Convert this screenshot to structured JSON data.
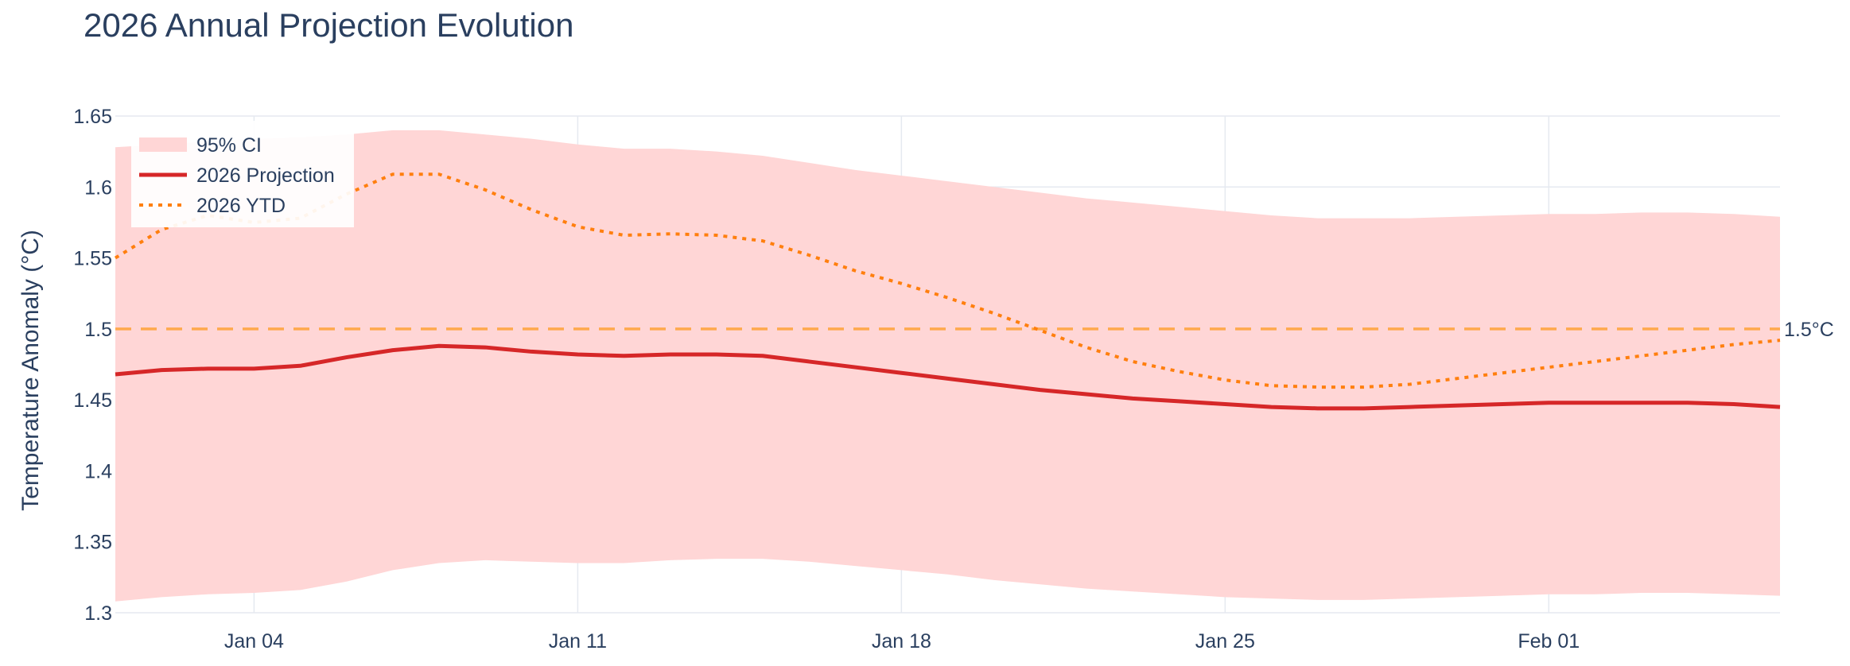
{
  "chart_data": {
    "type": "line",
    "title": "2026 Annual Projection Evolution",
    "xlabel": "",
    "ylabel": "Temperature Anomaly (°C)",
    "x_start": "2026-01-01",
    "x": [
      "2026-01-01",
      "2026-01-02",
      "2026-01-03",
      "2026-01-04",
      "2026-01-05",
      "2026-01-06",
      "2026-01-07",
      "2026-01-08",
      "2026-01-09",
      "2026-01-10",
      "2026-01-11",
      "2026-01-12",
      "2026-01-13",
      "2026-01-14",
      "2026-01-15",
      "2026-01-16",
      "2026-01-17",
      "2026-01-18",
      "2026-01-19",
      "2026-01-20",
      "2026-01-21",
      "2026-01-22",
      "2026-01-23",
      "2026-01-24",
      "2026-01-25",
      "2026-01-26",
      "2026-01-27",
      "2026-01-28",
      "2026-01-29",
      "2026-01-30",
      "2026-01-31",
      "2026-02-01",
      "2026-02-02",
      "2026-02-03",
      "2026-02-04",
      "2026-02-05",
      "2026-02-06"
    ],
    "xlim": [
      "2026-01-01",
      "2026-02-06"
    ],
    "ylim": [
      1.3,
      1.65
    ],
    "x_ticks": [
      {
        "date": "2026-01-04",
        "label": "Jan 04"
      },
      {
        "date": "2026-01-11",
        "label": "Jan 11"
      },
      {
        "date": "2026-01-18",
        "label": "Jan 18"
      },
      {
        "date": "2026-01-25",
        "label": "Jan 25"
      },
      {
        "date": "2026-02-01",
        "label": "Feb 01"
      }
    ],
    "y_ticks": [
      {
        "value": 1.3,
        "label": "1.3"
      },
      {
        "value": 1.35,
        "label": "1.35"
      },
      {
        "value": 1.4,
        "label": "1.4"
      },
      {
        "value": 1.45,
        "label": "1.45"
      },
      {
        "value": 1.5,
        "label": "1.5"
      },
      {
        "value": 1.55,
        "label": "1.55"
      },
      {
        "value": 1.6,
        "label": "1.6"
      },
      {
        "value": 1.65,
        "label": "1.65"
      }
    ],
    "grid": true,
    "legend_position": "top-left",
    "series": [
      {
        "name": "95% CI",
        "kind": "band",
        "color": "#ffd6d6",
        "upper": [
          1.628,
          1.63,
          1.632,
          1.634,
          1.635,
          1.637,
          1.64,
          1.64,
          1.637,
          1.634,
          1.63,
          1.627,
          1.627,
          1.625,
          1.622,
          1.617,
          1.612,
          1.608,
          1.604,
          1.6,
          1.596,
          1.592,
          1.589,
          1.586,
          1.583,
          1.58,
          1.578,
          1.578,
          1.578,
          1.579,
          1.58,
          1.581,
          1.581,
          1.582,
          1.582,
          1.581,
          1.579
        ],
        "lower": [
          1.308,
          1.311,
          1.313,
          1.314,
          1.316,
          1.322,
          1.33,
          1.335,
          1.337,
          1.336,
          1.335,
          1.335,
          1.337,
          1.338,
          1.338,
          1.336,
          1.333,
          1.33,
          1.327,
          1.323,
          1.32,
          1.317,
          1.315,
          1.313,
          1.311,
          1.31,
          1.309,
          1.309,
          1.31,
          1.311,
          1.312,
          1.313,
          1.313,
          1.314,
          1.314,
          1.313,
          1.312
        ]
      },
      {
        "name": "2026 Projection",
        "kind": "line",
        "color": "#d62728",
        "dash": "solid",
        "values": [
          1.468,
          1.471,
          1.472,
          1.472,
          1.474,
          1.48,
          1.485,
          1.488,
          1.487,
          1.484,
          1.482,
          1.481,
          1.482,
          1.482,
          1.481,
          1.477,
          1.473,
          1.469,
          1.465,
          1.461,
          1.457,
          1.454,
          1.451,
          1.449,
          1.447,
          1.445,
          1.444,
          1.444,
          1.445,
          1.446,
          1.447,
          1.448,
          1.448,
          1.448,
          1.448,
          1.447,
          1.445
        ]
      },
      {
        "name": "2026 YTD",
        "kind": "line",
        "color": "#ff7f0e",
        "dash": "dot",
        "values": [
          1.55,
          1.57,
          1.58,
          1.575,
          1.578,
          1.595,
          1.609,
          1.609,
          1.598,
          1.584,
          1.572,
          1.566,
          1.567,
          1.566,
          1.562,
          1.552,
          1.541,
          1.532,
          1.522,
          1.511,
          1.499,
          1.487,
          1.477,
          1.47,
          1.464,
          1.46,
          1.459,
          1.459,
          1.461,
          1.465,
          1.469,
          1.473,
          1.477,
          1.481,
          1.485,
          1.489,
          1.492
        ]
      }
    ],
    "reference_line": {
      "value": 1.5,
      "label": "1.5°C",
      "color": "#ffa94d",
      "dash": "dash"
    }
  }
}
